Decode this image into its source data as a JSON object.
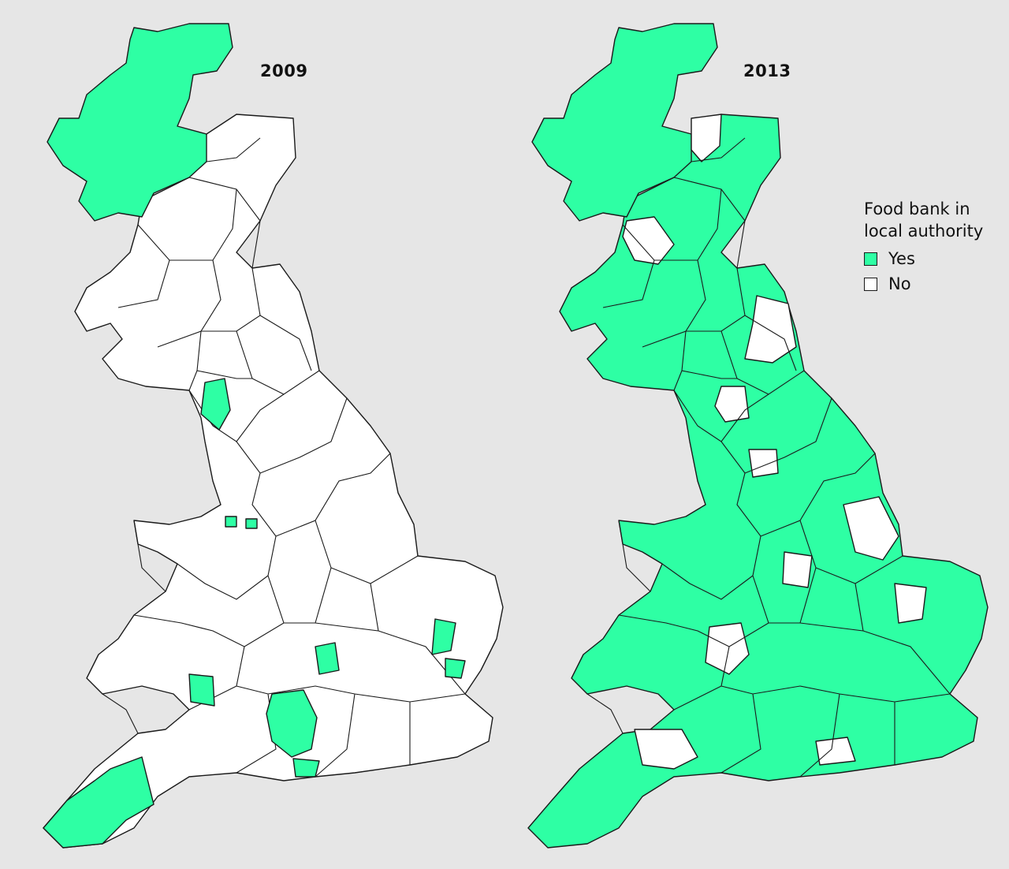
{
  "maps": [
    {
      "year": "2009"
    },
    {
      "year": "2013"
    }
  ],
  "legend": {
    "title_line1": "Food bank in",
    "title_line2": "local authority",
    "items": [
      {
        "label": "Yes",
        "color": "#2effa4"
      },
      {
        "label": "No",
        "color": "#ffffff"
      }
    ]
  }
}
